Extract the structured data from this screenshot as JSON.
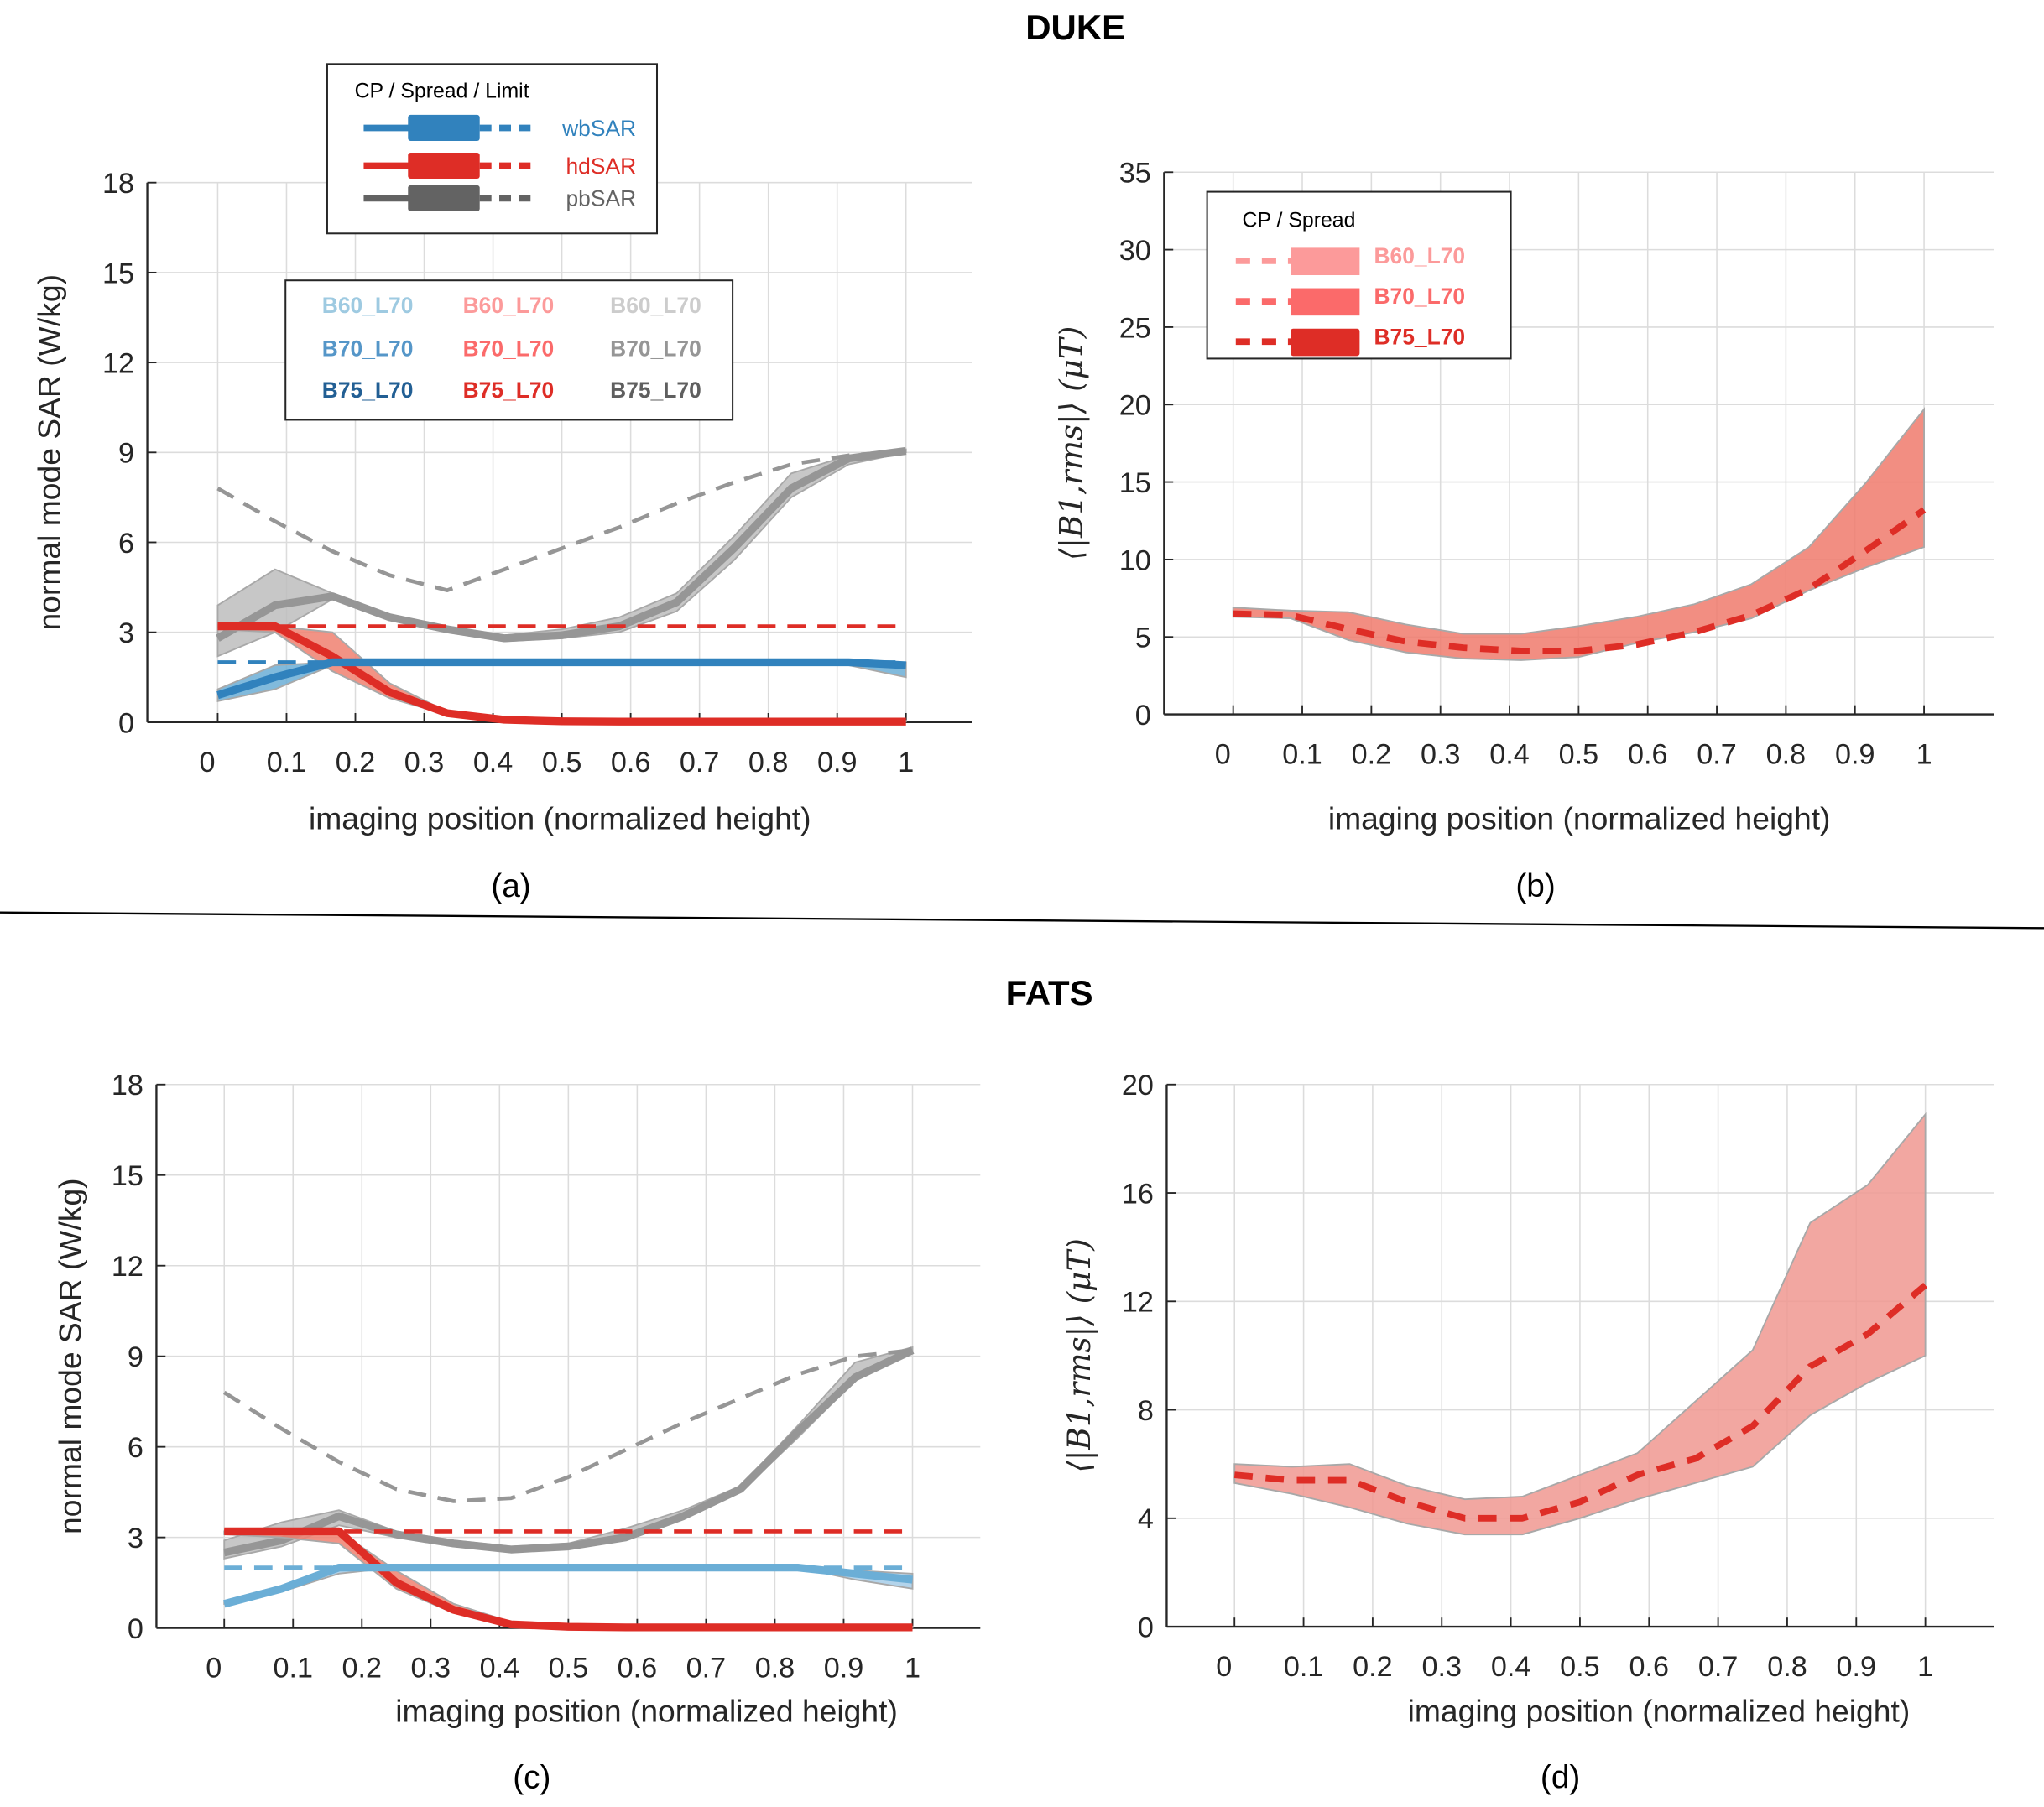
{
  "sections": {
    "top_title": "DUKE",
    "bottom_title": "FATS"
  },
  "panels": {
    "a": {
      "label": "(a)"
    },
    "b": {
      "label": "(b)"
    },
    "c": {
      "label": "(c)"
    },
    "d": {
      "label": "(d)"
    }
  },
  "legend_sar": {
    "title": "CP / Spread / Limit",
    "items": [
      {
        "label": "wbSAR",
        "color": "#3182bd"
      },
      {
        "label": "hdSAR",
        "color": "#de2d26"
      },
      {
        "label": "pbSAR",
        "color": "#636363"
      }
    ]
  },
  "legend_configs": {
    "rows": [
      [
        {
          "label": "B60_L70",
          "color": "#9ecae1"
        },
        {
          "label": "B60_L70",
          "color": "#fc9a9a"
        },
        {
          "label": "B60_L70",
          "color": "#cccccc"
        }
      ],
      [
        {
          "label": "B70_L70",
          "color": "#5596c8"
        },
        {
          "label": "B70_L70",
          "color": "#fb6a6a"
        },
        {
          "label": "B70_L70",
          "color": "#969696"
        }
      ],
      [
        {
          "label": "B75_L70",
          "color": "#225f94"
        },
        {
          "label": "B75_L70",
          "color": "#de2d26"
        },
        {
          "label": "B75_L70",
          "color": "#5f5f5f"
        }
      ]
    ]
  },
  "legend_b1": {
    "title": "CP / Spread",
    "items": [
      {
        "label": "B60_L70",
        "color": "#fc9a9a"
      },
      {
        "label": "B70_L70",
        "color": "#fb6a6a"
      },
      {
        "label": "B75_L70",
        "color": "#de2d26"
      }
    ]
  },
  "chart_data": [
    {
      "id": "a",
      "type": "line",
      "title": "",
      "section": "DUKE",
      "xlabel": "imaging position (normalized height)",
      "ylabel": "normal mode SAR (W/kg)",
      "xlim": [
        0,
        1
      ],
      "ylim": [
        0,
        18
      ],
      "xticks": [
        "0",
        "0.1",
        "0.2",
        "0.3",
        "0.4",
        "0.5",
        "0.6",
        "0.7",
        "0.8",
        "0.9",
        "1"
      ],
      "yticks": [
        "0",
        "3",
        "6",
        "9",
        "12",
        "15",
        "18"
      ],
      "grid": true,
      "x": [
        0,
        0.0833,
        0.1667,
        0.25,
        0.3333,
        0.4167,
        0.5,
        0.5833,
        0.6667,
        0.75,
        0.8333,
        0.9167,
        1
      ],
      "series": [
        {
          "name": "pbSAR spread",
          "kind": "band",
          "color": "#bdbdbd",
          "lower": [
            2.2,
            3.0,
            4.1,
            3.4,
            3.0,
            2.7,
            2.8,
            3.0,
            3.7,
            5.4,
            7.5,
            8.6,
            9.0
          ],
          "upper": [
            3.9,
            5.1,
            4.3,
            3.6,
            3.2,
            2.9,
            3.1,
            3.5,
            4.3,
            6.2,
            8.3,
            8.9,
            9.1
          ]
        },
        {
          "name": "pbSAR CP",
          "kind": "line",
          "color": "#969696",
          "values": [
            2.8,
            3.9,
            4.2,
            3.5,
            3.1,
            2.8,
            2.9,
            3.2,
            4.0,
            5.8,
            7.8,
            8.8,
            9.05
          ]
        },
        {
          "name": "pbSAR limit",
          "kind": "dashed",
          "color": "#969696",
          "values": [
            7.8,
            6.7,
            5.7,
            4.9,
            4.4,
            5.1,
            5.8,
            6.5,
            7.3,
            8.0,
            8.6,
            8.9,
            9.05
          ]
        },
        {
          "name": "hdSAR spread",
          "kind": "band",
          "color": "#f08070",
          "lower": [
            3.1,
            3.0,
            1.7,
            0.8,
            0.25,
            0.05,
            0.02,
            0.02,
            0.02,
            0.02,
            0.02,
            0.02,
            0.02
          ],
          "upper": [
            3.2,
            3.2,
            3.0,
            1.3,
            0.35,
            0.1,
            0.05,
            0.05,
            0.05,
            0.05,
            0.05,
            0.05,
            0.05
          ]
        },
        {
          "name": "hdSAR CP",
          "kind": "line",
          "color": "#de2d26",
          "values": [
            3.2,
            3.2,
            2.2,
            1.0,
            0.3,
            0.08,
            0.03,
            0.02,
            0.02,
            0.02,
            0.02,
            0.02,
            0.02
          ]
        },
        {
          "name": "hdSAR limit",
          "kind": "dashed",
          "color": "#de2d26",
          "values": [
            3.2,
            3.2,
            3.2,
            3.2,
            3.2,
            3.2,
            3.2,
            3.2,
            3.2,
            3.2,
            3.2,
            3.2,
            3.2
          ]
        },
        {
          "name": "wbSAR spread",
          "kind": "band",
          "color": "#6baed6",
          "lower": [
            0.7,
            1.1,
            1.9,
            2.0,
            2.0,
            2.0,
            2.0,
            2.0,
            2.0,
            2.0,
            2.0,
            1.9,
            1.5
          ],
          "upper": [
            1.1,
            1.9,
            2.0,
            2.0,
            2.0,
            2.0,
            2.0,
            2.0,
            2.0,
            2.0,
            2.0,
            2.0,
            2.0
          ]
        },
        {
          "name": "wbSAR CP",
          "kind": "line",
          "color": "#3182bd",
          "values": [
            0.9,
            1.5,
            2.0,
            2.0,
            2.0,
            2.0,
            2.0,
            2.0,
            2.0,
            2.0,
            2.0,
            2.0,
            1.9
          ]
        },
        {
          "name": "wbSAR limit",
          "kind": "dashed",
          "color": "#3182bd",
          "values": [
            2.0,
            2.0,
            2.0,
            2.0,
            2.0,
            2.0,
            2.0,
            2.0,
            2.0,
            2.0,
            2.0,
            2.0,
            2.0
          ]
        }
      ]
    },
    {
      "id": "b",
      "type": "line",
      "title": "",
      "section": "DUKE",
      "xlabel": "imaging position (normalized height)",
      "ylabel": "⟨|B1,rms|⟩ (μT)",
      "xlim": [
        0,
        1
      ],
      "ylim": [
        0,
        35
      ],
      "xticks": [
        "0",
        "0.1",
        "0.2",
        "0.3",
        "0.4",
        "0.5",
        "0.6",
        "0.7",
        "0.8",
        "0.9",
        "1"
      ],
      "yticks": [
        "0",
        "5",
        "10",
        "15",
        "20",
        "25",
        "30",
        "35"
      ],
      "grid": true,
      "x": [
        0,
        0.0833,
        0.1667,
        0.25,
        0.3333,
        0.4167,
        0.5,
        0.5833,
        0.6667,
        0.75,
        0.8333,
        0.9167,
        1
      ],
      "series": [
        {
          "name": "B1 spread",
          "kind": "band",
          "color": "#f07a6c",
          "lower": [
            6.3,
            6.2,
            4.8,
            4.0,
            3.6,
            3.5,
            3.7,
            4.6,
            5.3,
            6.2,
            8.0,
            9.5,
            10.8
          ],
          "upper": [
            6.9,
            6.7,
            6.6,
            5.8,
            5.2,
            5.2,
            5.7,
            6.3,
            7.1,
            8.4,
            10.8,
            15.0,
            19.7
          ]
        },
        {
          "name": "B1 CP",
          "kind": "dashed",
          "color": "#de2d26",
          "values": [
            6.5,
            6.4,
            5.5,
            4.7,
            4.3,
            4.1,
            4.1,
            4.5,
            5.3,
            6.4,
            8.1,
            10.6,
            13.2
          ]
        }
      ]
    },
    {
      "id": "c",
      "type": "line",
      "title": "",
      "section": "FATS",
      "xlabel": "imaging position (normalized height)",
      "ylabel": "normal mode SAR (W/kg)",
      "xlim": [
        0,
        1
      ],
      "ylim": [
        0,
        18
      ],
      "xticks": [
        "0",
        "0.1",
        "0.2",
        "0.3",
        "0.4",
        "0.5",
        "0.6",
        "0.7",
        "0.8",
        "0.9",
        "1"
      ],
      "yticks": [
        "0",
        "3",
        "6",
        "9",
        "12",
        "15",
        "18"
      ],
      "grid": true,
      "x": [
        0,
        0.0833,
        0.1667,
        0.25,
        0.3333,
        0.4167,
        0.5,
        0.5833,
        0.6667,
        0.75,
        0.8333,
        0.9167,
        1
      ],
      "series": [
        {
          "name": "pbSAR spread",
          "kind": "band",
          "color": "#bdbdbd",
          "lower": [
            2.3,
            2.7,
            3.4,
            3.0,
            2.8,
            2.6,
            2.7,
            3.0,
            3.6,
            4.5,
            6.3,
            8.2,
            9.2
          ],
          "upper": [
            2.9,
            3.5,
            3.9,
            3.2,
            2.9,
            2.7,
            2.8,
            3.3,
            3.9,
            4.7,
            6.7,
            8.8,
            9.3
          ]
        },
        {
          "name": "pbSAR CP",
          "kind": "line",
          "color": "#969696",
          "values": [
            2.5,
            2.9,
            3.7,
            3.1,
            2.8,
            2.6,
            2.7,
            3.0,
            3.7,
            4.6,
            6.5,
            8.3,
            9.2
          ]
        },
        {
          "name": "pbSAR limit",
          "kind": "dashed",
          "color": "#969696",
          "values": [
            7.8,
            6.6,
            5.5,
            4.6,
            4.2,
            4.3,
            5.0,
            5.9,
            6.8,
            7.6,
            8.4,
            9.0,
            9.2
          ]
        },
        {
          "name": "hdSAR spread",
          "kind": "band",
          "color": "#f08070",
          "lower": [
            3.1,
            3.0,
            2.8,
            1.3,
            0.5,
            0.1,
            0.03,
            0.02,
            0.02,
            0.02,
            0.02,
            0.02,
            0.02
          ],
          "upper": [
            3.2,
            3.2,
            3.2,
            1.9,
            0.8,
            0.2,
            0.06,
            0.05,
            0.05,
            0.05,
            0.05,
            0.05,
            0.05
          ]
        },
        {
          "name": "hdSAR CP",
          "kind": "line",
          "color": "#de2d26",
          "values": [
            3.2,
            3.2,
            3.2,
            1.5,
            0.6,
            0.12,
            0.04,
            0.02,
            0.02,
            0.02,
            0.02,
            0.02,
            0.02
          ]
        },
        {
          "name": "hdSAR limit",
          "kind": "dashed",
          "color": "#de2d26",
          "values": [
            3.2,
            3.2,
            3.2,
            3.2,
            3.2,
            3.2,
            3.2,
            3.2,
            3.2,
            3.2,
            3.2,
            3.2,
            3.2
          ]
        },
        {
          "name": "wbSAR spread",
          "kind": "band",
          "color": "#a6cde8",
          "lower": [
            0.8,
            1.2,
            1.8,
            2.0,
            2.0,
            2.0,
            2.0,
            2.0,
            2.0,
            2.0,
            2.0,
            1.6,
            1.3
          ],
          "upper": [
            0.9,
            1.4,
            2.0,
            2.0,
            2.0,
            2.0,
            2.0,
            2.0,
            2.0,
            2.0,
            2.0,
            1.9,
            1.8
          ]
        },
        {
          "name": "wbSAR CP",
          "kind": "line",
          "color": "#6baed6",
          "values": [
            0.8,
            1.3,
            2.0,
            2.0,
            2.0,
            2.0,
            2.0,
            2.0,
            2.0,
            2.0,
            2.0,
            1.8,
            1.6
          ]
        },
        {
          "name": "wbSAR limit",
          "kind": "dashed",
          "color": "#6baed6",
          "values": [
            2.0,
            2.0,
            2.0,
            2.0,
            2.0,
            2.0,
            2.0,
            2.0,
            2.0,
            2.0,
            2.0,
            2.0,
            2.0
          ]
        }
      ]
    },
    {
      "id": "d",
      "type": "line",
      "title": "",
      "section": "FATS",
      "xlabel": "imaging position (normalized height)",
      "ylabel": "⟨|B1,rms|⟩ (μT)",
      "xlim": [
        0,
        1
      ],
      "ylim": [
        0,
        20
      ],
      "xticks": [
        "0",
        "0.1",
        "0.2",
        "0.3",
        "0.4",
        "0.5",
        "0.6",
        "0.7",
        "0.8",
        "0.9",
        "1"
      ],
      "yticks": [
        "0",
        "4",
        "8",
        "12",
        "16",
        "20"
      ],
      "grid": true,
      "x": [
        0,
        0.0833,
        0.1667,
        0.25,
        0.3333,
        0.4167,
        0.5,
        0.5833,
        0.6667,
        0.75,
        0.8333,
        0.9167,
        1
      ],
      "series": [
        {
          "name": "B1 spread",
          "kind": "band",
          "color": "#f09890",
          "lower": [
            5.3,
            4.9,
            4.4,
            3.8,
            3.4,
            3.4,
            4.0,
            4.7,
            5.3,
            5.9,
            7.8,
            9.0,
            10.0
          ],
          "upper": [
            6.0,
            5.9,
            6.0,
            5.2,
            4.7,
            4.8,
            5.6,
            6.4,
            8.3,
            10.2,
            14.9,
            16.3,
            18.9
          ]
        },
        {
          "name": "B1 CP",
          "kind": "dashed",
          "color": "#de2d26",
          "values": [
            5.6,
            5.4,
            5.4,
            4.6,
            4.0,
            4.0,
            4.6,
            5.6,
            6.2,
            7.4,
            9.6,
            10.8,
            12.6
          ]
        }
      ]
    }
  ]
}
